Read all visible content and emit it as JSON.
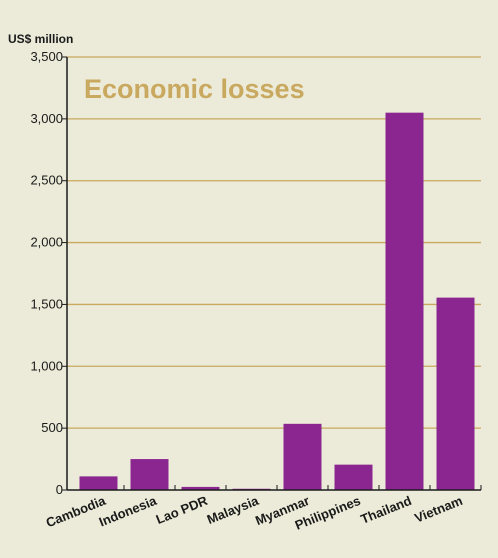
{
  "chart_data": {
    "type": "bar",
    "title": "Economic losses",
    "ylabel": "US$ million",
    "xlabel": "",
    "categories": [
      "Cambodia",
      "Indonesia",
      "Lao PDR",
      "Malaysia",
      "Myanmar",
      "Philippines",
      "Thailand",
      "Vietnam"
    ],
    "values": [
      110,
      250,
      25,
      10,
      535,
      205,
      3050,
      1555
    ],
    "ylim": [
      0,
      3500
    ],
    "yticks": [
      0,
      500,
      1000,
      1500,
      2000,
      2500,
      3000,
      3500
    ],
    "ytick_labels": [
      "0",
      "500",
      "1,000",
      "1,500",
      "2,000",
      "2,500",
      "3,000",
      "3,500"
    ],
    "grid": true,
    "colors": {
      "bar": "#8b2690",
      "grid": "#c9a85f",
      "title": "#c9a85f",
      "axis": "#1a1a1a",
      "background": "#ecebd9"
    }
  }
}
